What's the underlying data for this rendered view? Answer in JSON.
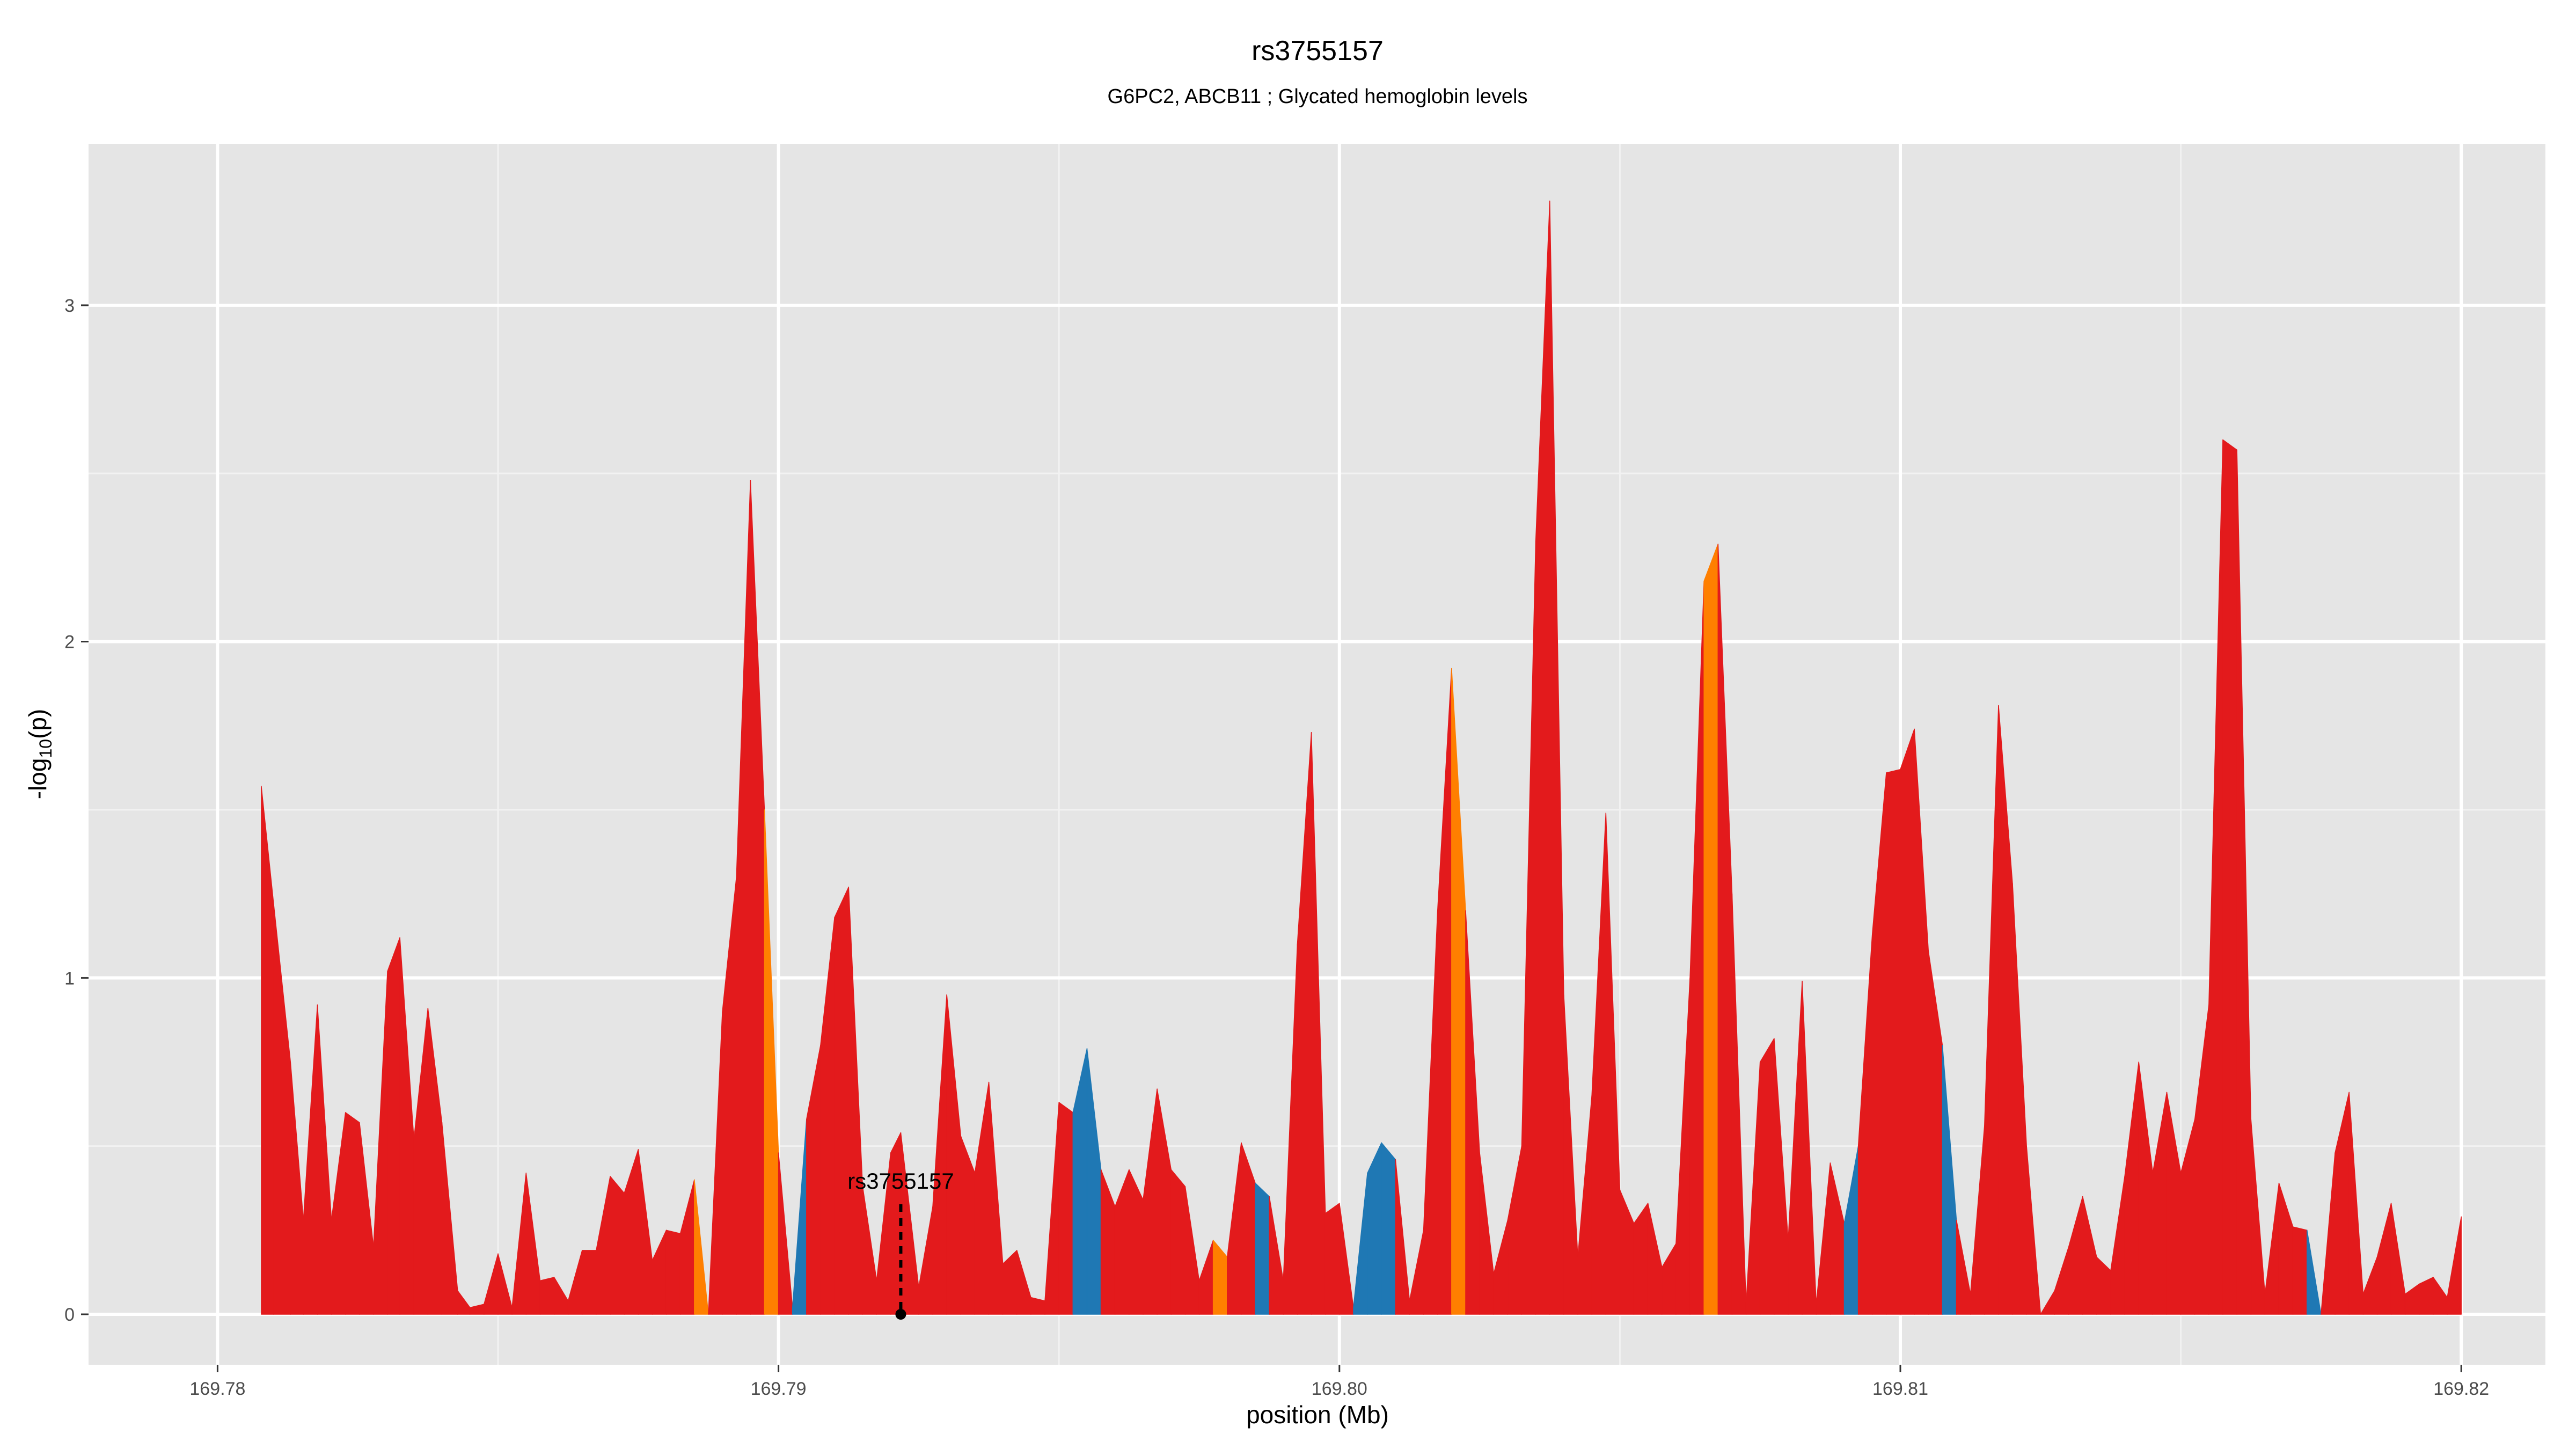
{
  "chart_data": {
    "type": "area",
    "title": "rs3755157",
    "subtitle": "G6PC2, ABCB11 ; Glycated hemoglobin levels",
    "xlabel": "position (Mb)",
    "ylabel": "-log10(p)",
    "xlim": [
      169.7777,
      169.8215
    ],
    "ylim": [
      -0.15,
      3.48
    ],
    "x_ticks": [
      169.78,
      169.79,
      169.8,
      169.81,
      169.82
    ],
    "x_tick_labels": [
      "169.78",
      "169.79",
      "169.80",
      "169.81",
      "169.82"
    ],
    "y_ticks": [
      0,
      1,
      2,
      3
    ],
    "y_tick_labels": [
      "0",
      "1",
      "2",
      "3"
    ],
    "grid": true,
    "colors": {
      "panel_bg": "#e5e5e5",
      "grid": "#ffffff",
      "red": "#e31a1c",
      "orange": "#ff7f00",
      "blue": "#1f78b4",
      "annotation": "#000000"
    },
    "annotation": {
      "label": "rs3755157",
      "x": 169.79218,
      "y": 0
    },
    "points": [
      {
        "x": 169.78078,
        "y": 1.57,
        "c": "red"
      },
      {
        "x": 169.781,
        "y": 1.22,
        "c": "red"
      },
      {
        "x": 169.7813,
        "y": 0.75,
        "c": "red"
      },
      {
        "x": 169.78153,
        "y": 0.28,
        "c": "red"
      },
      {
        "x": 169.78178,
        "y": 0.92,
        "c": "red"
      },
      {
        "x": 169.78203,
        "y": 0.28,
        "c": "red"
      },
      {
        "x": 169.78228,
        "y": 0.6,
        "c": "red"
      },
      {
        "x": 169.78253,
        "y": 0.57,
        "c": "red"
      },
      {
        "x": 169.78278,
        "y": 0.2,
        "c": "red"
      },
      {
        "x": 169.78303,
        "y": 1.02,
        "c": "red"
      },
      {
        "x": 169.78325,
        "y": 1.12,
        "c": "red"
      },
      {
        "x": 169.7835,
        "y": 0.52,
        "c": "red"
      },
      {
        "x": 169.78375,
        "y": 0.91,
        "c": "red"
      },
      {
        "x": 169.784,
        "y": 0.57,
        "c": "red"
      },
      {
        "x": 169.78428,
        "y": 0.07,
        "c": "red"
      },
      {
        "x": 169.7845,
        "y": 0.02,
        "c": "red"
      },
      {
        "x": 169.78475,
        "y": 0.03,
        "c": "red"
      },
      {
        "x": 169.785,
        "y": 0.18,
        "c": "red"
      },
      {
        "x": 169.78525,
        "y": 0.02,
        "c": "red"
      },
      {
        "x": 169.7855,
        "y": 0.42,
        "c": "red"
      },
      {
        "x": 169.78575,
        "y": 0.1,
        "c": "red"
      },
      {
        "x": 169.786,
        "y": 0.11,
        "c": "red"
      },
      {
        "x": 169.78625,
        "y": 0.04,
        "c": "red"
      },
      {
        "x": 169.7865,
        "y": 0.19,
        "c": "red"
      },
      {
        "x": 169.78675,
        "y": 0.19,
        "c": "red"
      },
      {
        "x": 169.787,
        "y": 0.41,
        "c": "red"
      },
      {
        "x": 169.78725,
        "y": 0.36,
        "c": "red"
      },
      {
        "x": 169.7875,
        "y": 0.49,
        "c": "red"
      },
      {
        "x": 169.78775,
        "y": 0.16,
        "c": "red"
      },
      {
        "x": 169.788,
        "y": 0.25,
        "c": "red"
      },
      {
        "x": 169.78825,
        "y": 0.24,
        "c": "red"
      },
      {
        "x": 169.7885,
        "y": 0.4,
        "c": "orange"
      },
      {
        "x": 169.78875,
        "y": 0.0,
        "c": "red"
      },
      {
        "x": 169.789,
        "y": 0.9,
        "c": "red"
      },
      {
        "x": 169.78925,
        "y": 1.3,
        "c": "red"
      },
      {
        "x": 169.7895,
        "y": 2.48,
        "c": "red"
      },
      {
        "x": 169.78975,
        "y": 1.5,
        "c": "orange"
      },
      {
        "x": 169.79,
        "y": 0.48,
        "c": "red"
      },
      {
        "x": 169.79025,
        "y": 0.02,
        "c": "blue"
      },
      {
        "x": 169.7905,
        "y": 0.58,
        "c": "red"
      },
      {
        "x": 169.79075,
        "y": 0.8,
        "c": "red"
      },
      {
        "x": 169.791,
        "y": 1.18,
        "c": "red"
      },
      {
        "x": 169.79125,
        "y": 1.27,
        "c": "red"
      },
      {
        "x": 169.7915,
        "y": 0.38,
        "c": "red"
      },
      {
        "x": 169.79175,
        "y": 0.1,
        "c": "red"
      },
      {
        "x": 169.792,
        "y": 0.48,
        "c": "red"
      },
      {
        "x": 169.79218,
        "y": 0.54,
        "c": "red"
      },
      {
        "x": 169.7925,
        "y": 0.08,
        "c": "red"
      },
      {
        "x": 169.79275,
        "y": 0.32,
        "c": "red"
      },
      {
        "x": 169.793,
        "y": 0.95,
        "c": "red"
      },
      {
        "x": 169.79325,
        "y": 0.53,
        "c": "red"
      },
      {
        "x": 169.7935,
        "y": 0.42,
        "c": "red"
      },
      {
        "x": 169.79375,
        "y": 0.69,
        "c": "red"
      },
      {
        "x": 169.794,
        "y": 0.15,
        "c": "red"
      },
      {
        "x": 169.79425,
        "y": 0.19,
        "c": "red"
      },
      {
        "x": 169.7945,
        "y": 0.05,
        "c": "red"
      },
      {
        "x": 169.79475,
        "y": 0.04,
        "c": "red"
      },
      {
        "x": 169.795,
        "y": 0.63,
        "c": "red"
      },
      {
        "x": 169.79525,
        "y": 0.6,
        "c": "blue"
      },
      {
        "x": 169.7955,
        "y": 0.79,
        "c": "blue"
      },
      {
        "x": 169.79575,
        "y": 0.43,
        "c": "red"
      },
      {
        "x": 169.796,
        "y": 0.32,
        "c": "red"
      },
      {
        "x": 169.79625,
        "y": 0.43,
        "c": "red"
      },
      {
        "x": 169.7965,
        "y": 0.34,
        "c": "red"
      },
      {
        "x": 169.79675,
        "y": 0.67,
        "c": "red"
      },
      {
        "x": 169.797,
        "y": 0.43,
        "c": "red"
      },
      {
        "x": 169.79725,
        "y": 0.38,
        "c": "red"
      },
      {
        "x": 169.7975,
        "y": 0.1,
        "c": "red"
      },
      {
        "x": 169.79775,
        "y": 0.22,
        "c": "orange"
      },
      {
        "x": 169.798,
        "y": 0.17,
        "c": "red"
      },
      {
        "x": 169.79825,
        "y": 0.51,
        "c": "red"
      },
      {
        "x": 169.7985,
        "y": 0.39,
        "c": "blue"
      },
      {
        "x": 169.79875,
        "y": 0.35,
        "c": "red"
      },
      {
        "x": 169.799,
        "y": 0.1,
        "c": "red"
      },
      {
        "x": 169.79925,
        "y": 1.1,
        "c": "red"
      },
      {
        "x": 169.7995,
        "y": 1.73,
        "c": "red"
      },
      {
        "x": 169.79975,
        "y": 0.3,
        "c": "red"
      },
      {
        "x": 169.8,
        "y": 0.33,
        "c": "red"
      },
      {
        "x": 169.80025,
        "y": 0.02,
        "c": "blue"
      },
      {
        "x": 169.8005,
        "y": 0.42,
        "c": "blue"
      },
      {
        "x": 169.80075,
        "y": 0.51,
        "c": "blue"
      },
      {
        "x": 169.801,
        "y": 0.46,
        "c": "red"
      },
      {
        "x": 169.80125,
        "y": 0.04,
        "c": "red"
      },
      {
        "x": 169.8015,
        "y": 0.25,
        "c": "red"
      },
      {
        "x": 169.80175,
        "y": 1.2,
        "c": "red"
      },
      {
        "x": 169.802,
        "y": 1.92,
        "c": "orange"
      },
      {
        "x": 169.80225,
        "y": 1.2,
        "c": "red"
      },
      {
        "x": 169.8025,
        "y": 0.48,
        "c": "red"
      },
      {
        "x": 169.80275,
        "y": 0.12,
        "c": "red"
      },
      {
        "x": 169.803,
        "y": 0.28,
        "c": "red"
      },
      {
        "x": 169.80325,
        "y": 0.5,
        "c": "red"
      },
      {
        "x": 169.8035,
        "y": 2.3,
        "c": "red"
      },
      {
        "x": 169.80375,
        "y": 3.31,
        "c": "red"
      },
      {
        "x": 169.804,
        "y": 0.95,
        "c": "red"
      },
      {
        "x": 169.80425,
        "y": 0.17,
        "c": "red"
      },
      {
        "x": 169.8045,
        "y": 0.65,
        "c": "red"
      },
      {
        "x": 169.80475,
        "y": 1.49,
        "c": "red"
      },
      {
        "x": 169.805,
        "y": 0.37,
        "c": "red"
      },
      {
        "x": 169.80525,
        "y": 0.27,
        "c": "red"
      },
      {
        "x": 169.8055,
        "y": 0.33,
        "c": "red"
      },
      {
        "x": 169.80575,
        "y": 0.14,
        "c": "red"
      },
      {
        "x": 169.806,
        "y": 0.21,
        "c": "red"
      },
      {
        "x": 169.80625,
        "y": 1.0,
        "c": "red"
      },
      {
        "x": 169.8065,
        "y": 2.18,
        "c": "orange"
      },
      {
        "x": 169.80675,
        "y": 2.29,
        "c": "red"
      },
      {
        "x": 169.807,
        "y": 1.25,
        "c": "red"
      },
      {
        "x": 169.80725,
        "y": 0.03,
        "c": "red"
      },
      {
        "x": 169.8075,
        "y": 0.75,
        "c": "red"
      },
      {
        "x": 169.80775,
        "y": 0.82,
        "c": "red"
      },
      {
        "x": 169.808,
        "y": 0.22,
        "c": "red"
      },
      {
        "x": 169.80825,
        "y": 0.99,
        "c": "red"
      },
      {
        "x": 169.8085,
        "y": 0.03,
        "c": "red"
      },
      {
        "x": 169.80875,
        "y": 0.45,
        "c": "red"
      },
      {
        "x": 169.809,
        "y": 0.27,
        "c": "blue"
      },
      {
        "x": 169.80925,
        "y": 0.5,
        "c": "red"
      },
      {
        "x": 169.8095,
        "y": 1.13,
        "c": "red"
      },
      {
        "x": 169.80975,
        "y": 1.61,
        "c": "red"
      },
      {
        "x": 169.81,
        "y": 1.62,
        "c": "red"
      },
      {
        "x": 169.81025,
        "y": 1.74,
        "c": "red"
      },
      {
        "x": 169.8105,
        "y": 1.08,
        "c": "red"
      },
      {
        "x": 169.81075,
        "y": 0.8,
        "c": "blue"
      },
      {
        "x": 169.811,
        "y": 0.28,
        "c": "red"
      },
      {
        "x": 169.81125,
        "y": 0.06,
        "c": "red"
      },
      {
        "x": 169.8115,
        "y": 0.56,
        "c": "red"
      },
      {
        "x": 169.81175,
        "y": 1.81,
        "c": "red"
      },
      {
        "x": 169.812,
        "y": 1.28,
        "c": "red"
      },
      {
        "x": 169.81225,
        "y": 0.5,
        "c": "red"
      },
      {
        "x": 169.8125,
        "y": 0.0,
        "c": "red"
      },
      {
        "x": 169.81275,
        "y": 0.07,
        "c": "red"
      },
      {
        "x": 169.813,
        "y": 0.2,
        "c": "red"
      },
      {
        "x": 169.81325,
        "y": 0.35,
        "c": "red"
      },
      {
        "x": 169.8135,
        "y": 0.17,
        "c": "red"
      },
      {
        "x": 169.81375,
        "y": 0.13,
        "c": "red"
      },
      {
        "x": 169.814,
        "y": 0.41,
        "c": "red"
      },
      {
        "x": 169.81425,
        "y": 0.75,
        "c": "red"
      },
      {
        "x": 169.8145,
        "y": 0.42,
        "c": "red"
      },
      {
        "x": 169.81475,
        "y": 0.66,
        "c": "red"
      },
      {
        "x": 169.815,
        "y": 0.42,
        "c": "red"
      },
      {
        "x": 169.81525,
        "y": 0.58,
        "c": "red"
      },
      {
        "x": 169.8155,
        "y": 0.92,
        "c": "red"
      },
      {
        "x": 169.81575,
        "y": 2.6,
        "c": "red"
      },
      {
        "x": 169.816,
        "y": 2.57,
        "c": "red"
      },
      {
        "x": 169.81625,
        "y": 0.58,
        "c": "red"
      },
      {
        "x": 169.8165,
        "y": 0.06,
        "c": "red"
      },
      {
        "x": 169.81675,
        "y": 0.39,
        "c": "red"
      },
      {
        "x": 169.817,
        "y": 0.26,
        "c": "red"
      },
      {
        "x": 169.81725,
        "y": 0.25,
        "c": "blue"
      },
      {
        "x": 169.8175,
        "y": 0.0,
        "c": "red"
      },
      {
        "x": 169.81775,
        "y": 0.48,
        "c": "red"
      },
      {
        "x": 169.818,
        "y": 0.66,
        "c": "red"
      },
      {
        "x": 169.81825,
        "y": 0.06,
        "c": "red"
      },
      {
        "x": 169.8185,
        "y": 0.17,
        "c": "red"
      },
      {
        "x": 169.81875,
        "y": 0.33,
        "c": "red"
      },
      {
        "x": 169.819,
        "y": 0.06,
        "c": "red"
      },
      {
        "x": 169.81925,
        "y": 0.09,
        "c": "red"
      },
      {
        "x": 169.8195,
        "y": 0.11,
        "c": "red"
      },
      {
        "x": 169.81975,
        "y": 0.05,
        "c": "red"
      },
      {
        "x": 169.82,
        "y": 0.29,
        "c": "red"
      }
    ]
  }
}
